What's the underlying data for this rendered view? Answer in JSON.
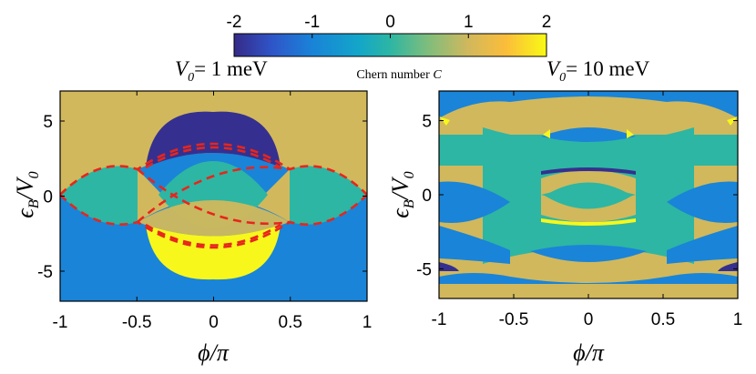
{
  "colors": {
    "c_m2": "#35308f",
    "c_m1": "#1a84d8",
    "c_0": "#2db6a3",
    "c_p1": "#d1b85c",
    "c_p2": "#f7f71c",
    "red_dash": "#e8251c",
    "frame": "#000000"
  },
  "colorbar": {
    "ticks": [
      "-2",
      "-1",
      "0",
      "1",
      "2"
    ],
    "label": "Chern number C",
    "label_text": "Chern number ",
    "label_var": "C",
    "range": [
      -2,
      2
    ]
  },
  "chart_data": [
    {
      "type": "heatmap",
      "title": "V0= 1 meV",
      "title_var": "V",
      "title_sub": "0",
      "title_rest": "= 1 meV",
      "xlabel": "ϕ/π",
      "ylabel": "εB/V0",
      "xlim": [
        -1,
        1
      ],
      "ylim": [
        -7,
        7
      ],
      "xticks": [
        "-1",
        "-0.5",
        "0",
        "0.5",
        "1"
      ],
      "yticks": [
        "5",
        "0",
        "-5"
      ],
      "value_name": "Chern number C",
      "regions": [
        {
          "value": 1,
          "description": "background above the lower boundary"
        },
        {
          "value": -1,
          "description": "background below the lower boundary"
        },
        {
          "value": -2,
          "description": "dome near phi=0, eps_B/V0 in [1.5, 5.7]"
        },
        {
          "value": 2,
          "description": "bowl near phi=0, eps_B/V0 in [-5.7, -1.5]"
        },
        {
          "value": 0,
          "description": "lens shapes around eps_B/V0 = 0"
        }
      ],
      "boundary_points_eps": [
        {
          "phi": -1,
          "eps": 0
        },
        {
          "phi": -0.5,
          "eps": 1.8
        },
        {
          "phi": -0.5,
          "eps": -1.8
        },
        {
          "phi": 0,
          "eps": 5.7
        },
        {
          "phi": 0,
          "eps": -5.7
        },
        {
          "phi": 0.5,
          "eps": 1.8
        },
        {
          "phi": 0.5,
          "eps": -1.8
        },
        {
          "phi": 1,
          "eps": 0
        }
      ],
      "dashed_curve": "red dashed gap-closing lines"
    },
    {
      "type": "heatmap",
      "title": "V0= 10 meV",
      "title_var": "V",
      "title_sub": "0",
      "title_rest": "= 10 meV",
      "xlabel": "ϕ/π",
      "ylabel": "εB/V0",
      "xlim": [
        -1,
        1
      ],
      "ylim": [
        -7,
        7
      ],
      "xticks": [
        "-1",
        "-0.5",
        "0",
        "0.5",
        "1"
      ],
      "yticks": [
        "5",
        "0",
        "-5"
      ],
      "value_name": "Chern number C",
      "regions": [
        {
          "value": 1,
          "description": "bands alternating with others"
        },
        {
          "value": -1,
          "description": "band rims and lobes"
        },
        {
          "value": 0,
          "description": "central cross-shaped area"
        },
        {
          "value": -2,
          "description": "thin slivers near band touchings"
        },
        {
          "value": 2,
          "description": "thin slivers near band touchings"
        }
      ]
    }
  ],
  "labels": {
    "xlabel_var": "ϕ",
    "xlabel_rest": "/π",
    "ylabel_var": "ϵ",
    "ylabel_sub": "B",
    "ylabel_rest": "/V",
    "ylabel_sub2": "0"
  }
}
